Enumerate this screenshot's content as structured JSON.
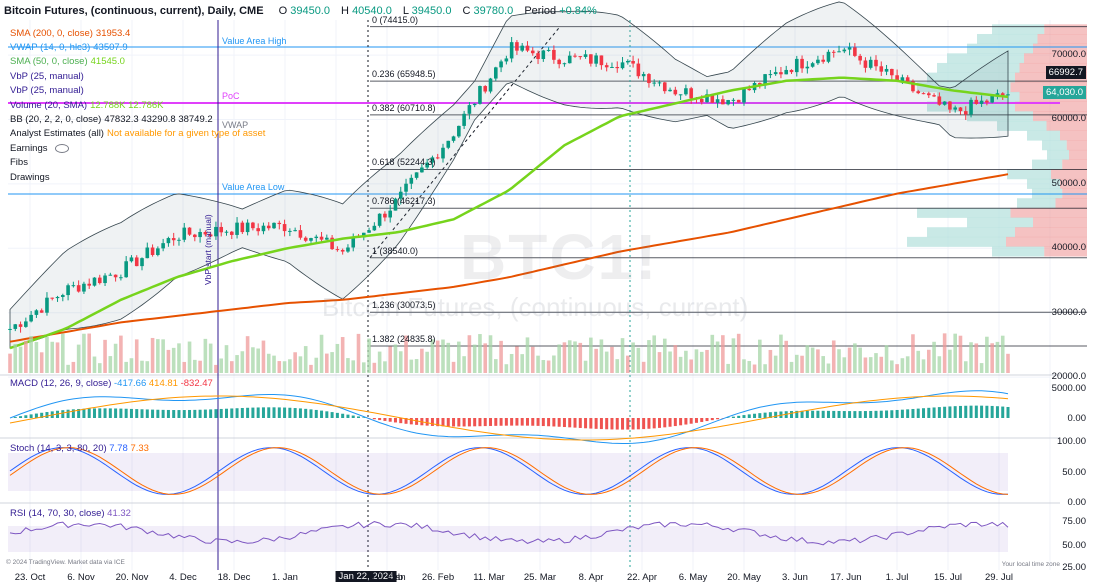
{
  "header": {
    "title": "Bitcoin Futures, (continuous, current), Daily, CME",
    "open_label": "O",
    "open": "39450.0",
    "high_label": "H",
    "high": "40540.0",
    "low_label": "L",
    "low": "39450.0",
    "close_label": "C",
    "close": "39780.0",
    "period_label": "Period",
    "period": "+0.84%"
  },
  "indicators": [
    {
      "label": "SMA (200, 0, close)",
      "values": "31953.4",
      "color": "#e65100"
    },
    {
      "label": "VWAP (14, 0, hlc3)",
      "values": "43507.9",
      "color": "#2196f3"
    },
    {
      "label": "SMA (50, 0, close)",
      "values": "41545.0",
      "color": "#76d41c"
    },
    {
      "label": "VbP (25, manual)",
      "values": "",
      "color": "#311b92"
    },
    {
      "label": "VbP (25, manual)",
      "values": "",
      "color": "#311b92"
    },
    {
      "label": "Volume (20, SMA)",
      "values": "12.788K 12.786K",
      "color": "#311b92"
    },
    {
      "label": "BB (20, 2, 2, 0, close)",
      "values": "47832.3 43290.8 38749.2",
      "color": "#131722"
    },
    {
      "label": "Analyst Estimates (all)",
      "values": "Not available for a given type of asset",
      "color": "#131722"
    },
    {
      "label": "Earnings",
      "values": "",
      "color": "#131722"
    },
    {
      "label": "Fibs",
      "values": "",
      "color": "#131722"
    },
    {
      "label": "Drawings",
      "values": "",
      "color": "#131722"
    }
  ],
  "overlay_labels": {
    "value_area_high": "Value Area High",
    "value_area_low": "Value Area Low",
    "poc": "PoC",
    "vwap": "VWAP",
    "vbp_start": "VbP start (manual)"
  },
  "watermark": {
    "symbol": "BTC1!",
    "name": "Bitcoin Futures, (continuous, current)"
  },
  "fib_levels": [
    {
      "label": "0 (74415.0)",
      "value": 74415
    },
    {
      "label": "0.236 (65948.5)",
      "value": 65948.5
    },
    {
      "label": "0.382 (60710.8)",
      "value": 60710.8
    },
    {
      "label": "0.618 (52244.3)",
      "value": 52244.3
    },
    {
      "label": "0.786 (46217.3)",
      "value": 46217.3
    },
    {
      "label": "1 (38540.0)",
      "value": 38540
    },
    {
      "label": "1.236 (30073.5)",
      "value": 30073.5
    },
    {
      "label": "1.382 (24835.8)",
      "value": 24835.8
    }
  ],
  "price_axis": [
    "70000.0",
    "60000.0",
    "50000.0",
    "40000.0",
    "30000.0",
    "20000.0"
  ],
  "price_tags": [
    {
      "text": "66992.7",
      "color": "#131722",
      "value": 66992.7
    },
    {
      "text": "64,030.0",
      "color": "#26a69a",
      "value": 64030
    }
  ],
  "time_axis": [
    "23. Oct",
    "6. Nov",
    "20. Nov",
    "4. Dec",
    "18. Dec",
    "1. Jan",
    "Jan 22, 2024",
    "Jan",
    "12. Feb",
    "26. Feb",
    "11. Mar",
    "25. Mar",
    "8. Apr",
    "22. Apr",
    "6. May",
    "20. May",
    "3. Jun",
    "17. Jun",
    "1. Jul",
    "15. Jul",
    "29. Jul"
  ],
  "macd": {
    "label": "MACD (12, 26, 9, close)",
    "v1": "-417.66",
    "v2": "414.81",
    "v3": "-832.47",
    "axis": [
      "5000.00",
      "0.00"
    ]
  },
  "stoch": {
    "label": "Stoch (14, 3, 3, 80, 20)",
    "v1": "7.78",
    "v2": "7.33",
    "axis": [
      "100.00",
      "50.00",
      "0.00"
    ]
  },
  "rsi": {
    "label": "RSI (14, 70, 30, close)",
    "v1": "41.32",
    "axis": [
      "75.00",
      "50.00",
      "25.00"
    ]
  },
  "footer": "© 2024 TradingView. Market data via ICE",
  "local_time": "Your local time zone",
  "colors": {
    "up": "#089981",
    "down": "#f23645",
    "sma200": "#e65100",
    "sma50": "#76d41c",
    "bb": "#2962ff",
    "vbp_up": "#b2dfdb",
    "vbp_down": "#ef9a9a"
  },
  "chart_data": {
    "type": "candlestick",
    "title": "Bitcoin Futures, (continuous, current), Daily, CME",
    "ylim": [
      18000,
      77000
    ],
    "x": [
      "23. Oct",
      "6. Nov",
      "20. Nov",
      "4. Dec",
      "18. Dec",
      "1. Jan",
      "Jan 22, 2024",
      "12. Feb",
      "26. Feb",
      "11. Mar",
      "25. Mar",
      "8. Apr",
      "22. Apr",
      "6. May",
      "20. May",
      "3. Jun",
      "17. Jun",
      "1. Jul",
      "15. Jul"
    ],
    "close": [
      27500,
      33500,
      36500,
      42000,
      43000,
      43500,
      39500,
      47500,
      58000,
      71000,
      69500,
      69000,
      64500,
      63000,
      68000,
      71000,
      66000,
      61000,
      64030
    ],
    "sma200": [
      25500,
      27000,
      28500,
      29500,
      30500,
      31500,
      32000,
      33000,
      34000,
      35500,
      37500,
      39500,
      41000,
      42500,
      44500,
      46500,
      48500,
      50000,
      51500
    ],
    "sma50": [
      24500,
      27500,
      32000,
      35500,
      38000,
      40000,
      41500,
      42500,
      44500,
      49000,
      56000,
      60500,
      62500,
      64500,
      66000,
      66500,
      66000,
      64500,
      63500
    ]
  }
}
